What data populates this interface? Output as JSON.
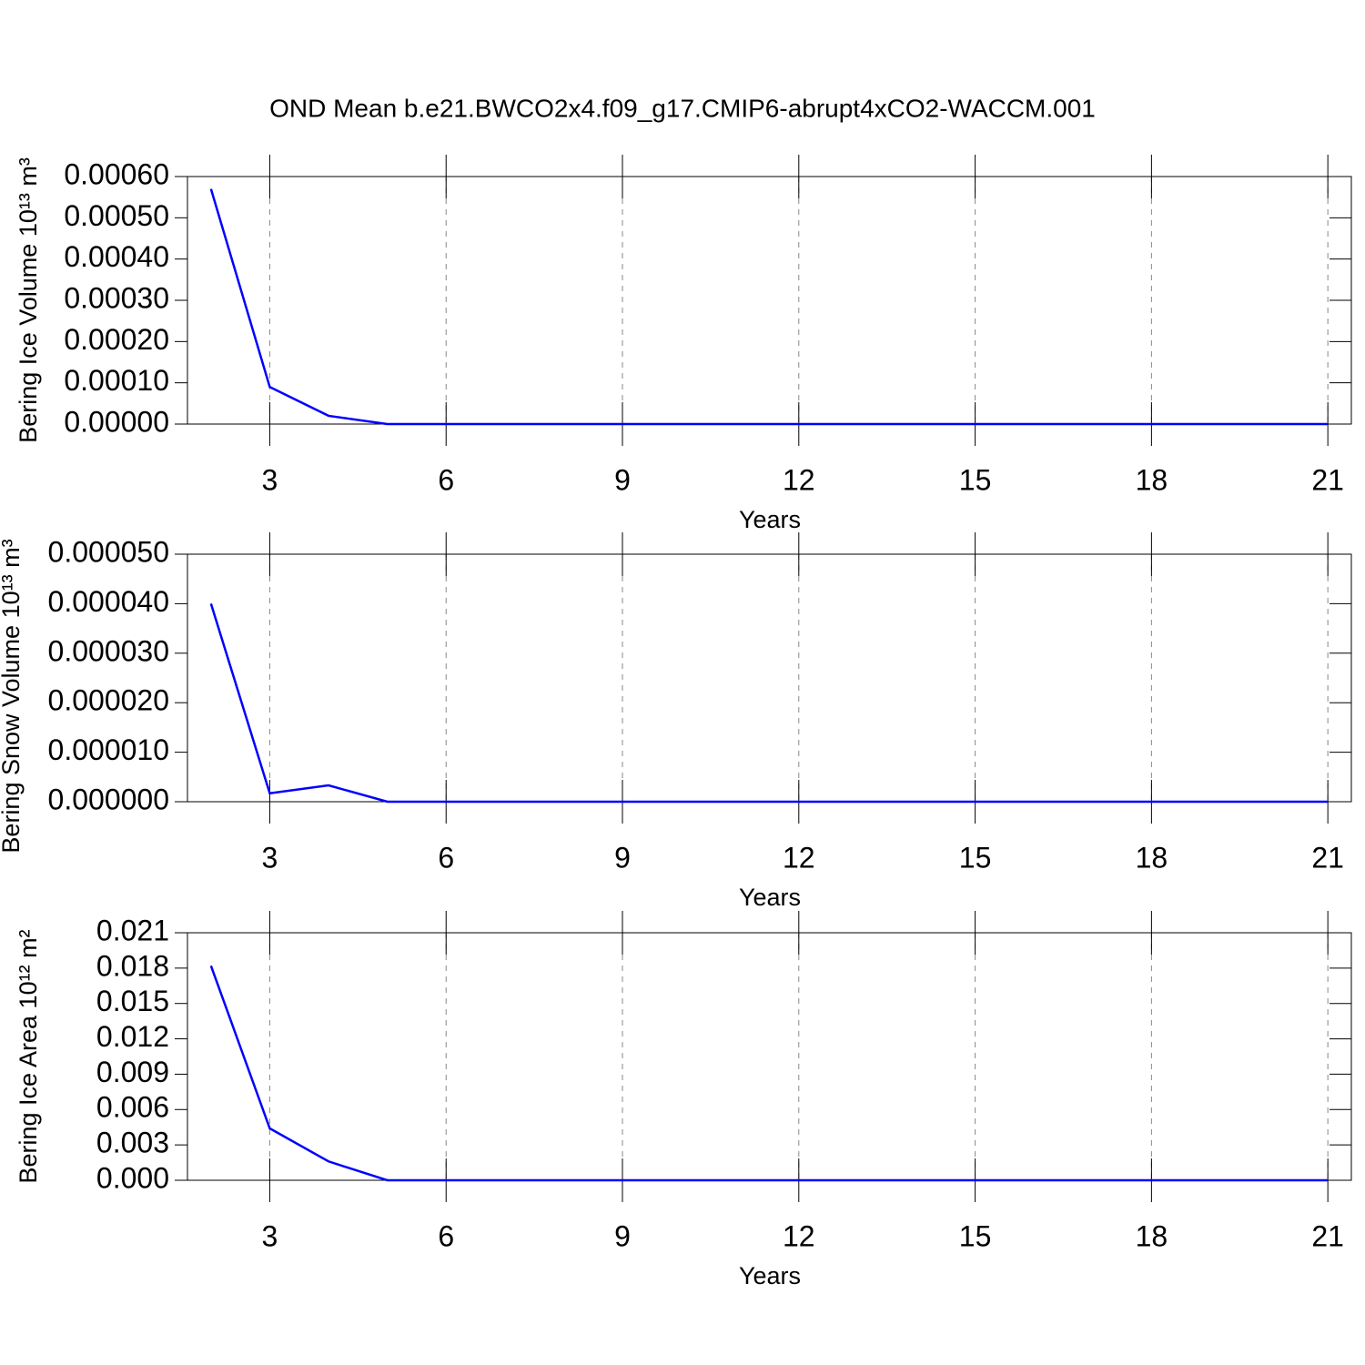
{
  "chart_data": [
    {
      "type": "line",
      "title": "OND Mean b.e21.BWCO2x4.f09_g17.CMIP6-abrupt4xCO2-WACCM.001",
      "y_label": "Bering Ice Volume 10¹³ m³",
      "x_label": "Years",
      "x": [
        2,
        3,
        4,
        5,
        6,
        7,
        8,
        9,
        10,
        11,
        12,
        13,
        14,
        15,
        16,
        17,
        18,
        19,
        20,
        21
      ],
      "values": [
        0.00057,
        9e-05,
        2e-05,
        0,
        0,
        0,
        0,
        0,
        0,
        0,
        0,
        0,
        0,
        0,
        0,
        0,
        0,
        0,
        0,
        0
      ],
      "color": "#0000ff",
      "xlim": [
        1.6,
        21.4
      ],
      "xticks": [
        3,
        6,
        9,
        12,
        15,
        18,
        21
      ],
      "ylim": [
        0,
        0.0006
      ],
      "yticks": [
        {
          "value": 0,
          "label": "0.00000"
        },
        {
          "value": 0.0001,
          "label": "0.00010"
        },
        {
          "value": 0.0002,
          "label": "0.00020"
        },
        {
          "value": 0.0003,
          "label": "0.00030"
        },
        {
          "value": 0.0004,
          "label": "0.00040"
        },
        {
          "value": 0.0005,
          "label": "0.00050"
        },
        {
          "value": 0.0006,
          "label": "0.00060"
        }
      ],
      "grid": true
    },
    {
      "type": "line",
      "y_label": "Bering Snow Volume 10¹³ m³",
      "x_label": "Years",
      "x": [
        2,
        3,
        4,
        5,
        6,
        7,
        8,
        9,
        10,
        11,
        12,
        13,
        14,
        15,
        16,
        17,
        18,
        19,
        20,
        21
      ],
      "values": [
        4e-05,
        1.7e-06,
        3.3e-06,
        0,
        0,
        0,
        0,
        0,
        0,
        0,
        0,
        0,
        0,
        0,
        0,
        0,
        0,
        0,
        0,
        0
      ],
      "color": "#0000ff",
      "xlim": [
        1.6,
        21.4
      ],
      "xticks": [
        3,
        6,
        9,
        12,
        15,
        18,
        21
      ],
      "ylim": [
        0,
        5e-05
      ],
      "yticks": [
        {
          "value": 0,
          "label": "0.000000"
        },
        {
          "value": 1e-05,
          "label": "0.000010"
        },
        {
          "value": 2e-05,
          "label": "0.000020"
        },
        {
          "value": 3e-05,
          "label": "0.000030"
        },
        {
          "value": 4e-05,
          "label": "0.000040"
        },
        {
          "value": 5e-05,
          "label": "0.000050"
        }
      ],
      "grid": true
    },
    {
      "type": "line",
      "y_label": "Bering Ice Area 10¹² m²",
      "x_label": "Years",
      "x": [
        2,
        3,
        4,
        5,
        6,
        7,
        8,
        9,
        10,
        11,
        12,
        13,
        14,
        15,
        16,
        17,
        18,
        19,
        20,
        21
      ],
      "values": [
        0.0182,
        0.0044,
        0.0016,
        0,
        0,
        0,
        0,
        0,
        0,
        0,
        0,
        0,
        0,
        0,
        0,
        0,
        0,
        0,
        0,
        0
      ],
      "color": "#0000ff",
      "xlim": [
        1.6,
        21.4
      ],
      "xticks": [
        3,
        6,
        9,
        12,
        15,
        18,
        21
      ],
      "ylim": [
        0,
        0.021
      ],
      "yticks": [
        {
          "value": 0,
          "label": "0.000"
        },
        0.003,
        0.006,
        0.009,
        0.012,
        0.015,
        0.018,
        0.021
      ],
      "grid": true
    }
  ]
}
